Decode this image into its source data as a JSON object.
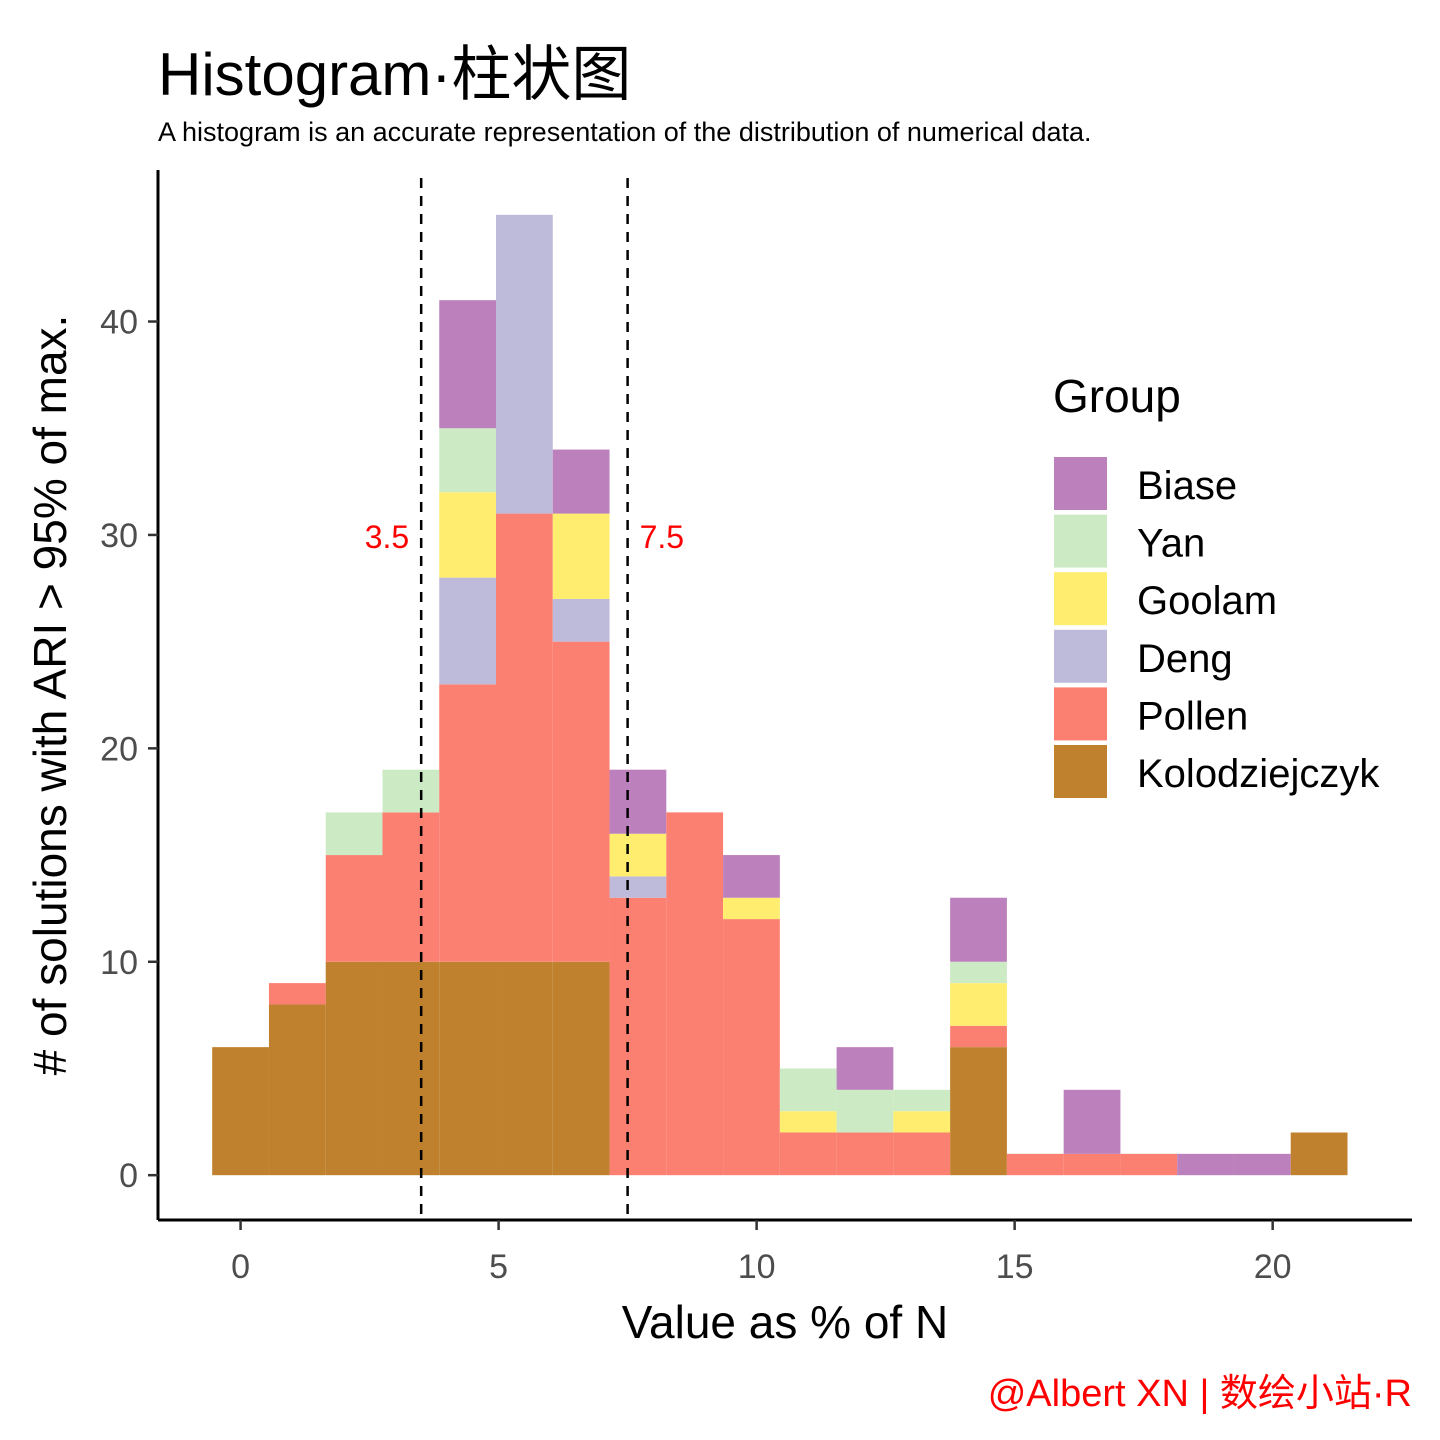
{
  "chart_data": {
    "type": "bar",
    "subtype": "stacked-histogram",
    "title": "Histogram·柱状图",
    "subtitle": "A histogram is an accurate representation of the distribution of numerical data.",
    "xlabel": "Value as % of N",
    "ylabel": "# of solutions with ARI > 95% of max.",
    "caption": "@Albert XN | 数绘小站·R",
    "xlim": [
      -1.6,
      22.7
    ],
    "ylim": [
      -2.1,
      47.1
    ],
    "x_ticks": [
      0,
      5,
      10,
      15,
      20
    ],
    "x_tick_labels": [
      "0",
      "5",
      "10",
      "15",
      "20"
    ],
    "y_ticks": [
      0,
      10,
      20,
      30,
      40
    ],
    "y_tick_labels": [
      "0",
      "10",
      "20",
      "30",
      "40"
    ],
    "bin_width": 1.1,
    "bin_centers": [
      0,
      1.1,
      2.2,
      3.3,
      4.4,
      5.5,
      6.6,
      7.7,
      8.8,
      9.9,
      11,
      12.1,
      13.2,
      14.3,
      15.4,
      16.5,
      17.6,
      18.7,
      19.8,
      20.9
    ],
    "series": [
      {
        "name": "Kolodziejczyk",
        "color": "#BF812D",
        "values": [
          6,
          8,
          10,
          10,
          10,
          10,
          10,
          0,
          0,
          0,
          0,
          0,
          0,
          6,
          0,
          0,
          0,
          0,
          0,
          2
        ]
      },
      {
        "name": "Pollen",
        "color": "#FB8072",
        "values": [
          0,
          1,
          5,
          7,
          13,
          21,
          15,
          13,
          17,
          12,
          2,
          2,
          2,
          1,
          1,
          1,
          1,
          0,
          0,
          0
        ]
      },
      {
        "name": "Deng",
        "color": "#BEBADA",
        "values": [
          0,
          0,
          0,
          0,
          5,
          14,
          2,
          1,
          0,
          0,
          0,
          0,
          0,
          0,
          0,
          0,
          0,
          0,
          0,
          0
        ]
      },
      {
        "name": "Goolam",
        "color": "#FFED6F",
        "values": [
          0,
          0,
          0,
          0,
          4,
          0,
          4,
          2,
          0,
          1,
          1,
          0,
          1,
          2,
          0,
          0,
          0,
          0,
          0,
          0
        ]
      },
      {
        "name": "Yan",
        "color": "#CCEBC5",
        "values": [
          0,
          0,
          2,
          2,
          3,
          0,
          0,
          0,
          0,
          0,
          2,
          2,
          1,
          1,
          0,
          0,
          0,
          0,
          0,
          0
        ]
      },
      {
        "name": "Biase",
        "color": "#BC80BD",
        "values": [
          0,
          0,
          0,
          0,
          6,
          0,
          3,
          3,
          0,
          2,
          0,
          2,
          0,
          3,
          0,
          3,
          0,
          1,
          1,
          0
        ]
      }
    ],
    "vlines": [
      {
        "x": 3.5,
        "label": "3.5",
        "label_color": "#FF0000",
        "style": "dashed"
      },
      {
        "x": 7.5,
        "label": "7.5",
        "label_color": "#FF0000",
        "style": "dashed"
      }
    ],
    "legend": {
      "title": "Group",
      "position": "right-inside",
      "entries": [
        "Biase",
        "Yan",
        "Goolam",
        "Deng",
        "Pollen",
        "Kolodziejczyk"
      ]
    },
    "grid": false
  }
}
